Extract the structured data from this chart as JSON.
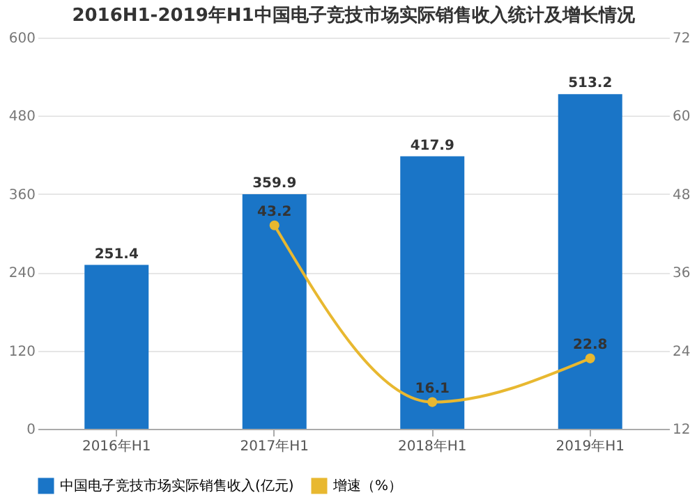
{
  "chart_data": {
    "type": "bar",
    "title": "2016H1-2019年H1中国电子竞技市场实际销售收入统计及增长情况",
    "categories": [
      "2016年H1",
      "2017年H1",
      "2018年H1",
      "2019年H1"
    ],
    "series": [
      {
        "name": "中国电子竞技市场实际销售收入(亿元)",
        "color": "#1a75c7",
        "values": [
          251.4,
          359.9,
          417.9,
          513.2
        ]
      },
      {
        "name": "增速（%）",
        "type": "line",
        "axis": "y2",
        "color": "#e8b830",
        "marker": "circle",
        "values": [
          null,
          43.2,
          16.1,
          22.8
        ]
      }
    ],
    "ylim": [
      0,
      600
    ],
    "yticks": [
      0,
      120,
      240,
      360,
      480,
      600
    ],
    "y2lim": [
      12,
      72
    ],
    "y2ticks": [
      12,
      24,
      36,
      48,
      60,
      72
    ],
    "grid": "y",
    "legend": "bottom",
    "data_labels": true
  }
}
